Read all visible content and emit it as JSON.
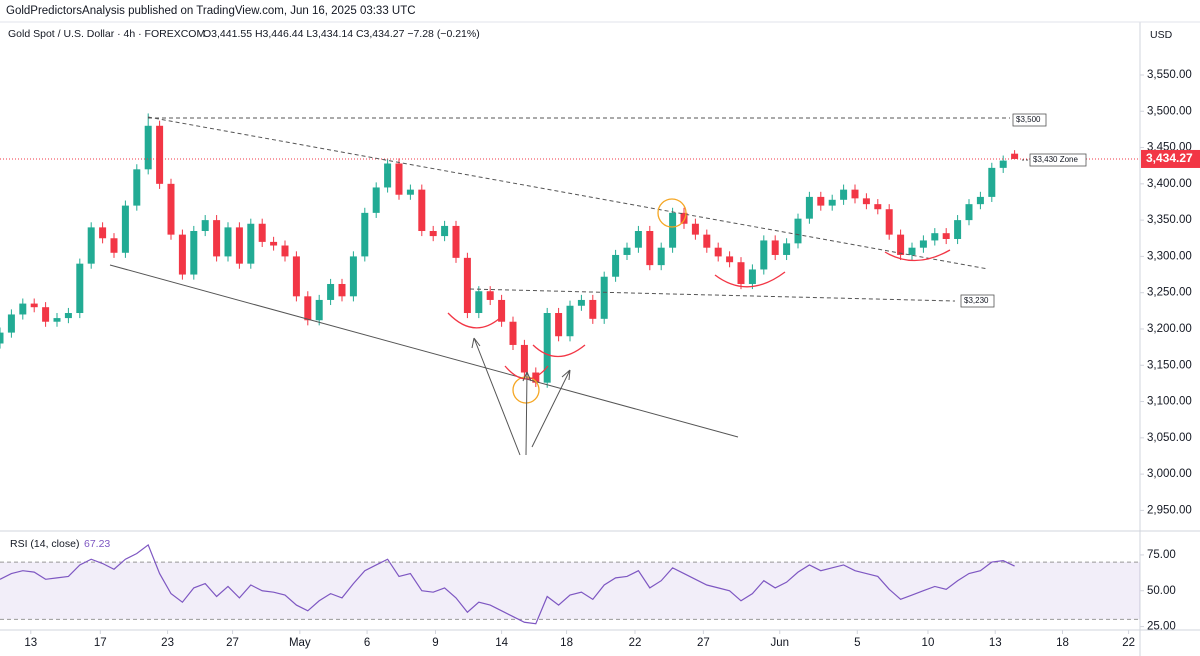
{
  "header": {
    "publisher": "GoldPredictorsAnalysis published on TradingView.com, Jun 16, 2025 03:33 UTC",
    "symbol": "Gold Spot / U.S. Dollar · 4h · FOREXCOM",
    "ohlc": "O3,441.55 H3,446.44 L3,434.14 C3,434.27 −7.28 (−0.21%)",
    "currency": "USD"
  },
  "annotations": [
    "$3,500",
    "$3,430 Zone",
    "$3,230"
  ],
  "chart_data": [
    {
      "type": "candlestick",
      "x": [
        0,
        1,
        2,
        3,
        4,
        5,
        6,
        7,
        8,
        9,
        10,
        11,
        12,
        13,
        14,
        15,
        16,
        17,
        18,
        19,
        20,
        21,
        22,
        23,
        24,
        25,
        26,
        27,
        28,
        29,
        30,
        31,
        32,
        33,
        34,
        35,
        36,
        37,
        38,
        39,
        40,
        41,
        42,
        43,
        44,
        45,
        46,
        47,
        48,
        49,
        50,
        51,
        52,
        53,
        54,
        55,
        56,
        57,
        58,
        59,
        60,
        61,
        62,
        63,
        64,
        65,
        66,
        67,
        68,
        69,
        70,
        71,
        72,
        73,
        74,
        75,
        76,
        77,
        78,
        79,
        80,
        81,
        82,
        83,
        84,
        85,
        86,
        87,
        88,
        89
      ],
      "open": [
        3180,
        3195,
        3220,
        3235,
        3230,
        3210,
        3215,
        3222,
        3290,
        3340,
        3325,
        3305,
        3370,
        3420,
        3480,
        3400,
        3330,
        3275,
        3335,
        3350,
        3300,
        3340,
        3290,
        3345,
        3320,
        3315,
        3300,
        3245,
        3212,
        3240,
        3262,
        3245,
        3300,
        3360,
        3395,
        3428,
        3385,
        3392,
        3335,
        3328,
        3342,
        3298,
        3222,
        3252,
        3240,
        3210,
        3178,
        3140,
        3126,
        3222,
        3190,
        3232,
        3240,
        3214,
        3272,
        3302,
        3312,
        3335,
        3288,
        3312,
        3360,
        3345,
        3330,
        3312,
        3300,
        3292,
        3262,
        3282,
        3322,
        3302,
        3318,
        3352,
        3382,
        3370,
        3378,
        3392,
        3380,
        3372,
        3365,
        3330,
        3302,
        3312,
        3322,
        3332,
        3324,
        3350,
        3372,
        3382,
        3422,
        3441.55
      ],
      "high": [
        3202,
        3227,
        3242,
        3242,
        3237,
        3222,
        3229,
        3297,
        3347,
        3347,
        3332,
        3377,
        3427,
        3497,
        3487,
        3407,
        3337,
        3342,
        3357,
        3357,
        3347,
        3347,
        3352,
        3352,
        3327,
        3322,
        3307,
        3252,
        3247,
        3269,
        3269,
        3307,
        3367,
        3402,
        3435,
        3435,
        3399,
        3399,
        3342,
        3349,
        3349,
        3305,
        3259,
        3259,
        3247,
        3217,
        3185,
        3147,
        3229,
        3229,
        3239,
        3247,
        3247,
        3279,
        3309,
        3319,
        3342,
        3342,
        3319,
        3367,
        3367,
        3352,
        3337,
        3319,
        3307,
        3299,
        3289,
        3329,
        3329,
        3325,
        3359,
        3389,
        3389,
        3385,
        3399,
        3399,
        3387,
        3379,
        3372,
        3337,
        3319,
        3329,
        3339,
        3339,
        3357,
        3379,
        3389,
        3429,
        3439,
        3446.44
      ],
      "low": [
        3173,
        3188,
        3213,
        3223,
        3203,
        3203,
        3208,
        3215,
        3283,
        3318,
        3298,
        3298,
        3363,
        3413,
        3393,
        3323,
        3268,
        3268,
        3328,
        3293,
        3293,
        3283,
        3283,
        3313,
        3308,
        3293,
        3238,
        3205,
        3205,
        3233,
        3238,
        3238,
        3293,
        3353,
        3388,
        3378,
        3378,
        3328,
        3321,
        3321,
        3291,
        3215,
        3215,
        3233,
        3203,
        3171,
        3133,
        3120,
        3119,
        3183,
        3183,
        3225,
        3207,
        3207,
        3265,
        3295,
        3305,
        3281,
        3281,
        3305,
        3338,
        3323,
        3305,
        3293,
        3285,
        3255,
        3255,
        3275,
        3295,
        3295,
        3311,
        3345,
        3363,
        3363,
        3371,
        3373,
        3365,
        3358,
        3323,
        3295,
        3295,
        3305,
        3315,
        3317,
        3317,
        3343,
        3365,
        3375,
        3415,
        3434.14
      ],
      "close": [
        3195,
        3220,
        3235,
        3230,
        3210,
        3215,
        3222,
        3290,
        3340,
        3325,
        3305,
        3370,
        3420,
        3480,
        3400,
        3330,
        3275,
        3335,
        3350,
        3300,
        3340,
        3290,
        3345,
        3320,
        3315,
        3300,
        3245,
        3212,
        3240,
        3262,
        3245,
        3300,
        3360,
        3395,
        3428,
        3385,
        3392,
        3335,
        3328,
        3342,
        3298,
        3222,
        3252,
        3240,
        3210,
        3178,
        3140,
        3126,
        3222,
        3190,
        3232,
        3240,
        3214,
        3272,
        3302,
        3312,
        3335,
        3288,
        3312,
        3360,
        3345,
        3330,
        3312,
        3300,
        3292,
        3262,
        3282,
        3322,
        3302,
        3318,
        3352,
        3382,
        3370,
        3378,
        3392,
        3380,
        3372,
        3365,
        3330,
        3302,
        3312,
        3322,
        3332,
        3324,
        3350,
        3372,
        3382,
        3422,
        3432,
        3434.27
      ],
      "up_color": "#22ab94",
      "down_color": "#f23645",
      "xlim": [
        0,
        100
      ],
      "xticks": [
        {
          "value": 2.7,
          "label": "13"
        },
        {
          "value": 8.8,
          "label": "17"
        },
        {
          "value": 14.7,
          "label": "23"
        },
        {
          "value": 20.4,
          "label": "27"
        },
        {
          "value": 26.3,
          "label": "May"
        },
        {
          "value": 32.2,
          "label": "6"
        },
        {
          "value": 38.2,
          "label": "9"
        },
        {
          "value": 44,
          "label": "14"
        },
        {
          "value": 49.7,
          "label": "18"
        },
        {
          "value": 55.7,
          "label": "22"
        },
        {
          "value": 61.7,
          "label": "27"
        },
        {
          "value": 68.4,
          "label": "Jun"
        },
        {
          "value": 75.2,
          "label": "5"
        },
        {
          "value": 81.4,
          "label": "10"
        },
        {
          "value": 87.3,
          "label": "13"
        },
        {
          "value": 93.2,
          "label": "18"
        },
        {
          "value": 99,
          "label": "22"
        }
      ],
      "ylim": [
        2923,
        3623
      ],
      "yticks": [
        {
          "value": 2950,
          "label": "2,950.00"
        },
        {
          "value": 3000,
          "label": "3,000.00"
        },
        {
          "value": 3050,
          "label": "3,050.00"
        },
        {
          "value": 3100,
          "label": "3,100.00"
        },
        {
          "value": 3150,
          "label": "3,150.00"
        },
        {
          "value": 3200,
          "label": "3,200.00"
        },
        {
          "value": 3250,
          "label": "3,250.00"
        },
        {
          "value": 3300,
          "label": "3,300.00"
        },
        {
          "value": 3350,
          "label": "3,350.00"
        },
        {
          "value": 3400,
          "label": "3,400.00"
        },
        {
          "value": 3450,
          "label": "3,450.00"
        },
        {
          "value": 3500,
          "label": "3,500.00"
        },
        {
          "value": 3550,
          "label": "3,550.00"
        }
      ],
      "last_price": {
        "value": 3434.27,
        "label": "3,434.27"
      },
      "last_price_color": "#f23645"
    },
    {
      "type": "line",
      "name": "RSI (14, close)",
      "color": "#7e57c2",
      "current_value": 67.23,
      "values": [
        58,
        62,
        64,
        63,
        58,
        59,
        60,
        68,
        72,
        69,
        65,
        72,
        76,
        82,
        62,
        48,
        42,
        52,
        55,
        46,
        53,
        45,
        54,
        50,
        49,
        47,
        40,
        36,
        43,
        48,
        45,
        55,
        64,
        68,
        72,
        60,
        62,
        50,
        49,
        52,
        45,
        35,
        42,
        40,
        36,
        32,
        28,
        27,
        46,
        40,
        47,
        49,
        44,
        54,
        59,
        60,
        64,
        52,
        57,
        66,
        62,
        58,
        54,
        52,
        50,
        43,
        48,
        57,
        52,
        56,
        63,
        68,
        64,
        66,
        68,
        64,
        62,
        60,
        51,
        44,
        47,
        50,
        53,
        51,
        57,
        62,
        64,
        70,
        71,
        67.23
      ],
      "band": [
        30,
        70
      ],
      "ylim": [
        24,
        91
      ],
      "yticks": [
        {
          "value": 25,
          "label": "25.00"
        },
        {
          "value": 50,
          "label": "50.00"
        },
        {
          "value": 75,
          "label": "75.00"
        }
      ]
    }
  ]
}
